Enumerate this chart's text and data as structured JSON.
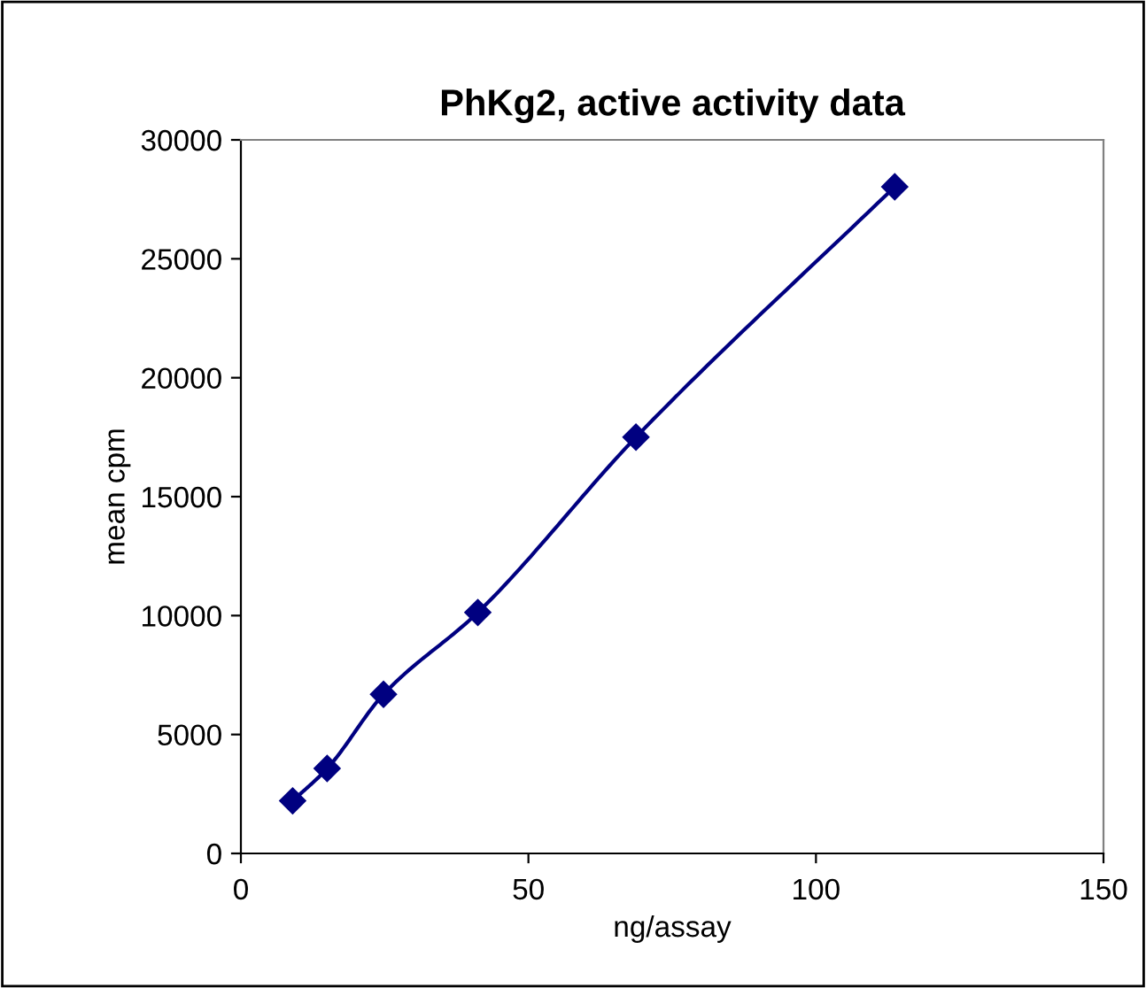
{
  "chart_data": {
    "type": "line",
    "title": "PhKg2, active activity data",
    "xlabel": "ng/assay",
    "ylabel": "mean cpm",
    "x": [
      9.0,
      15.0,
      24.8,
      41.2,
      68.7,
      113.7
    ],
    "series": [
      {
        "color": "#000080",
        "values": [
          2210,
          3570,
          6690,
          10130,
          17500,
          28030
        ]
      }
    ],
    "xlim": [
      0,
      150
    ],
    "xticks": [
      0,
      50,
      100,
      150
    ],
    "ylim": [
      0,
      30000
    ],
    "yticks": [
      0,
      5000,
      10000,
      15000,
      20000,
      25000,
      30000
    ],
    "grid": false,
    "marker": "diamond",
    "line_style": "solid"
  }
}
